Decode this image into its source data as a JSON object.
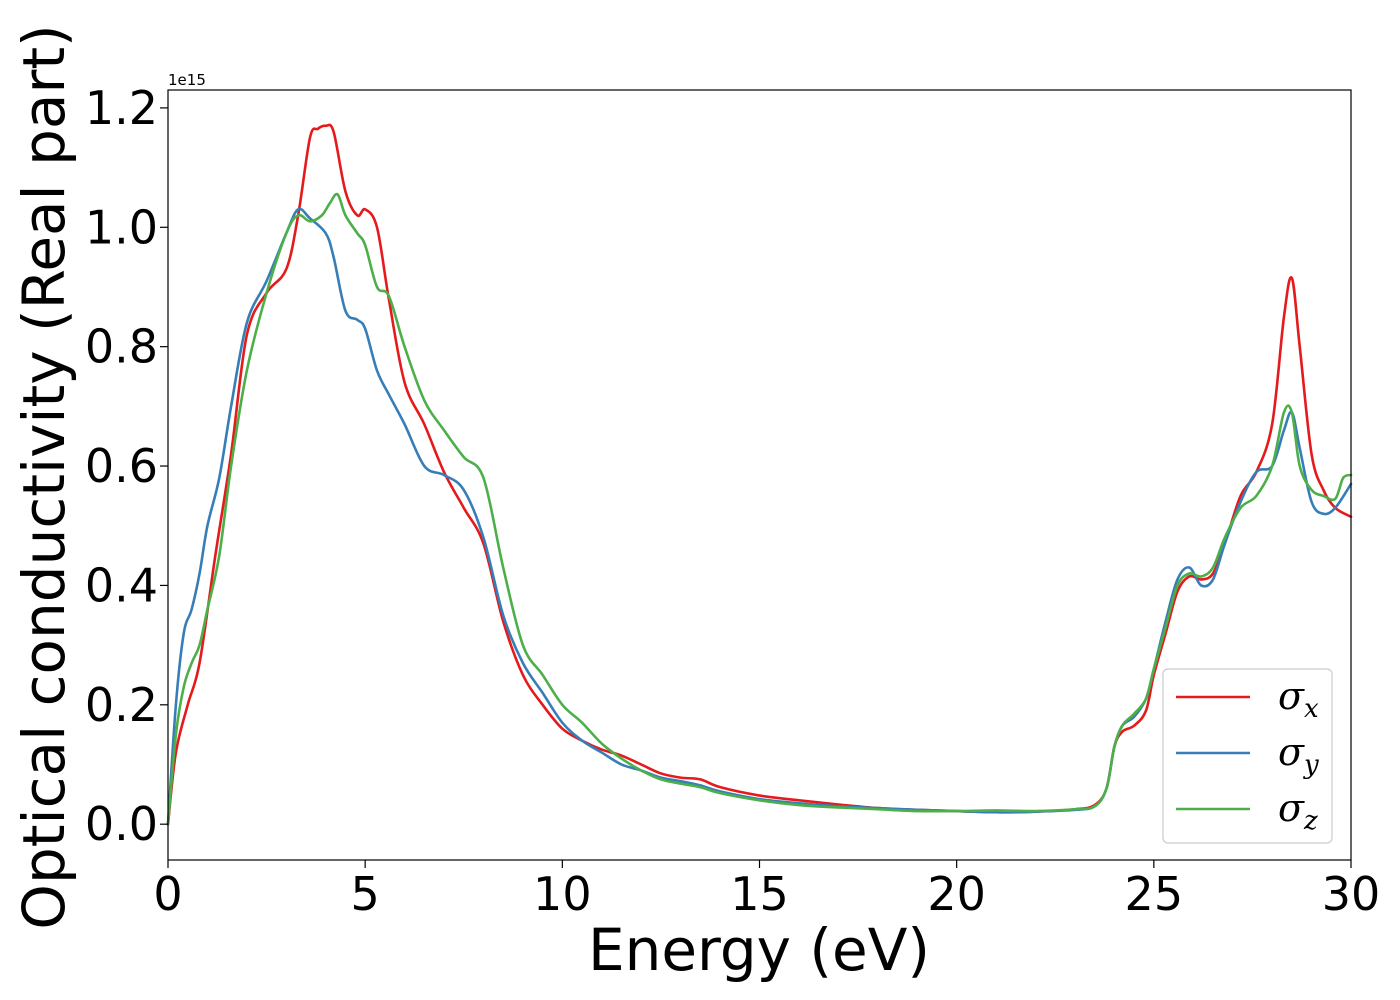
{
  "chart_data": {
    "type": "line",
    "xlabel": "Energy (eV)",
    "ylabel": "Optical conductivity (Real part)",
    "y_offset_label": "1e15",
    "y_multiplier": 1000000000000000.0,
    "xlim": [
      0,
      30
    ],
    "ylim": [
      -0.06,
      1.23
    ],
    "xticks": [
      0,
      5,
      10,
      15,
      20,
      25,
      30
    ],
    "xtick_labels": [
      "0",
      "5",
      "10",
      "15",
      "20",
      "25",
      "30"
    ],
    "yticks": [
      0.0,
      0.2,
      0.4,
      0.6,
      0.8,
      1.0,
      1.2
    ],
    "ytick_labels": [
      "0.0",
      "0.2",
      "0.4",
      "0.6",
      "0.8",
      "1.0",
      "1.2"
    ],
    "grid": false,
    "legend_position": "lower-right",
    "series": [
      {
        "name": "σx",
        "symbol": "σ",
        "subscript": "x",
        "color": "#e41a1c",
        "x": [
          0,
          0.2,
          0.5,
          0.8,
          1.2,
          1.6,
          2.0,
          2.5,
          3.0,
          3.3,
          3.6,
          3.8,
          4.0,
          4.2,
          4.5,
          4.8,
          5.0,
          5.3,
          5.6,
          6.0,
          6.5,
          7.0,
          7.5,
          8.0,
          8.5,
          9.0,
          9.5,
          10.0,
          10.5,
          11.0,
          11.5,
          12.0,
          12.5,
          13.0,
          13.5,
          14.0,
          15.0,
          16.0,
          17.0,
          18.0,
          19.0,
          20.0,
          21.0,
          22.0,
          23.0,
          23.5,
          23.8,
          24.0,
          24.2,
          24.5,
          24.8,
          25.0,
          25.3,
          25.6,
          25.9,
          26.2,
          26.5,
          26.8,
          27.2,
          27.6,
          28.0,
          28.3,
          28.5,
          28.7,
          29.0,
          29.3,
          29.6,
          30.0
        ],
        "y": [
          0.0,
          0.12,
          0.2,
          0.27,
          0.45,
          0.62,
          0.82,
          0.89,
          0.93,
          1.02,
          1.15,
          1.165,
          1.17,
          1.16,
          1.06,
          1.02,
          1.03,
          1.0,
          0.88,
          0.74,
          0.67,
          0.59,
          0.53,
          0.47,
          0.34,
          0.25,
          0.2,
          0.16,
          0.14,
          0.125,
          0.115,
          0.1,
          0.085,
          0.078,
          0.075,
          0.062,
          0.048,
          0.04,
          0.033,
          0.027,
          0.024,
          0.022,
          0.02,
          0.021,
          0.025,
          0.032,
          0.06,
          0.13,
          0.155,
          0.165,
          0.19,
          0.25,
          0.32,
          0.39,
          0.415,
          0.41,
          0.42,
          0.47,
          0.55,
          0.59,
          0.67,
          0.85,
          0.915,
          0.8,
          0.62,
          0.56,
          0.53,
          0.515
        ]
      },
      {
        "name": "σy",
        "symbol": "σ",
        "subscript": "y",
        "color": "#377eb8",
        "x": [
          0,
          0.2,
          0.4,
          0.6,
          0.8,
          1.0,
          1.3,
          1.6,
          2.0,
          2.5,
          3.0,
          3.3,
          3.6,
          4.0,
          4.2,
          4.5,
          4.8,
          5.0,
          5.3,
          5.6,
          6.0,
          6.5,
          7.0,
          7.5,
          8.0,
          8.5,
          9.0,
          9.5,
          10.0,
          10.5,
          11.0,
          11.5,
          12.0,
          12.5,
          13.0,
          13.5,
          14.0,
          15.0,
          16.0,
          17.0,
          18.0,
          19.0,
          20.0,
          21.0,
          22.0,
          23.0,
          23.5,
          23.8,
          24.0,
          24.2,
          24.5,
          24.8,
          25.0,
          25.3,
          25.6,
          25.9,
          26.2,
          26.5,
          26.8,
          27.2,
          27.6,
          28.0,
          28.3,
          28.5,
          28.7,
          29.0,
          29.3,
          29.6,
          30.0
        ],
        "y": [
          0.0,
          0.2,
          0.32,
          0.36,
          0.42,
          0.5,
          0.58,
          0.7,
          0.84,
          0.91,
          0.99,
          1.03,
          1.015,
          0.99,
          0.95,
          0.86,
          0.845,
          0.83,
          0.76,
          0.72,
          0.67,
          0.6,
          0.585,
          0.56,
          0.48,
          0.35,
          0.27,
          0.22,
          0.17,
          0.14,
          0.12,
          0.1,
          0.09,
          0.078,
          0.072,
          0.065,
          0.055,
          0.042,
          0.035,
          0.03,
          0.027,
          0.024,
          0.022,
          0.02,
          0.021,
          0.024,
          0.03,
          0.06,
          0.13,
          0.165,
          0.18,
          0.21,
          0.26,
          0.34,
          0.41,
          0.43,
          0.4,
          0.41,
          0.47,
          0.54,
          0.59,
          0.6,
          0.66,
          0.69,
          0.63,
          0.54,
          0.52,
          0.53,
          0.57
        ]
      },
      {
        "name": "σz",
        "symbol": "σ",
        "subscript": "z",
        "color": "#4daf4a",
        "x": [
          0,
          0.2,
          0.4,
          0.6,
          0.8,
          1.0,
          1.3,
          1.6,
          2.0,
          2.5,
          3.0,
          3.3,
          3.6,
          3.9,
          4.1,
          4.3,
          4.5,
          4.8,
          5.0,
          5.3,
          5.6,
          6.0,
          6.5,
          7.0,
          7.5,
          8.0,
          8.5,
          9.0,
          9.5,
          10.0,
          10.5,
          11.0,
          11.5,
          12.0,
          12.5,
          13.0,
          13.5,
          14.0,
          15.0,
          16.0,
          17.0,
          18.0,
          19.0,
          20.0,
          21.0,
          22.0,
          23.0,
          23.5,
          23.8,
          24.0,
          24.2,
          24.5,
          24.8,
          25.0,
          25.3,
          25.6,
          25.9,
          26.2,
          26.5,
          26.8,
          27.2,
          27.6,
          28.0,
          28.3,
          28.5,
          28.7,
          29.0,
          29.3,
          29.6,
          29.8,
          30.0
        ],
        "y": [
          0.0,
          0.15,
          0.23,
          0.27,
          0.3,
          0.36,
          0.45,
          0.6,
          0.76,
          0.89,
          0.99,
          1.02,
          1.01,
          1.02,
          1.04,
          1.055,
          1.02,
          0.99,
          0.97,
          0.9,
          0.885,
          0.8,
          0.71,
          0.66,
          0.615,
          0.58,
          0.43,
          0.3,
          0.25,
          0.2,
          0.17,
          0.135,
          0.11,
          0.09,
          0.075,
          0.068,
          0.062,
          0.052,
          0.04,
          0.032,
          0.028,
          0.025,
          0.022,
          0.022,
          0.023,
          0.022,
          0.025,
          0.03,
          0.06,
          0.13,
          0.165,
          0.185,
          0.21,
          0.26,
          0.33,
          0.4,
          0.42,
          0.415,
          0.43,
          0.48,
          0.53,
          0.55,
          0.6,
          0.69,
          0.69,
          0.6,
          0.56,
          0.55,
          0.545,
          0.58,
          0.585
        ]
      }
    ]
  }
}
